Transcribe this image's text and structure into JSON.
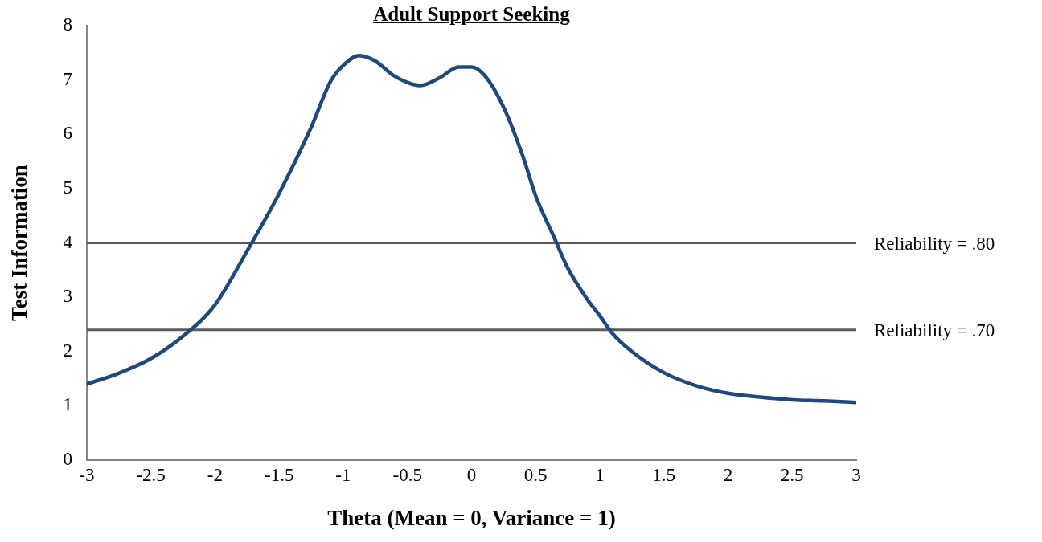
{
  "chart_data": {
    "type": "line",
    "title": "Adult Support Seeking",
    "xlabel": "Theta (Mean = 0, Variance = 1)",
    "ylabel": "Test Information",
    "x": [
      -3,
      -2.75,
      -2.5,
      -2.25,
      -2,
      -1.75,
      -1.5,
      -1.25,
      -1.1,
      -1,
      -0.875,
      -0.75,
      -0.6,
      -0.4,
      -0.25,
      -0.1,
      0,
      0.1,
      0.25,
      0.4,
      0.5,
      0.65,
      0.75,
      0.9,
      1,
      1.1,
      1.25,
      1.5,
      1.75,
      2,
      2.25,
      2.5,
      2.75,
      3
    ],
    "series": [
      {
        "color": "#1f497d",
        "values": [
          1.4,
          1.6,
          1.87,
          2.28,
          2.86,
          3.85,
          4.91,
          6.13,
          6.97,
          7.27,
          7.45,
          7.35,
          7.07,
          6.9,
          7.04,
          7.24,
          7.24,
          7.09,
          6.5,
          5.6,
          4.87,
          4.07,
          3.54,
          2.97,
          2.66,
          2.33,
          2.0,
          1.61,
          1.37,
          1.23,
          1.16,
          1.11,
          1.09,
          1.06
        ]
      }
    ],
    "xlim": [
      -3,
      3
    ],
    "xticks": [
      -3,
      -2.5,
      -2,
      -1.5,
      -1,
      -0.5,
      0,
      0.5,
      1,
      1.5,
      2,
      2.5,
      3
    ],
    "ylim": [
      0,
      8
    ],
    "yticks": [
      0,
      1,
      2,
      3,
      4,
      5,
      6,
      7,
      8
    ],
    "ref_lines": [
      {
        "axis": "y",
        "value": 4,
        "label": "Reliability = .80",
        "color": "#595959"
      },
      {
        "axis": "y",
        "value": 2.4,
        "label": "Reliability = .70",
        "color": "#595959"
      }
    ],
    "grid": false,
    "legend": false,
    "marker": "none",
    "line_style": "solid"
  }
}
